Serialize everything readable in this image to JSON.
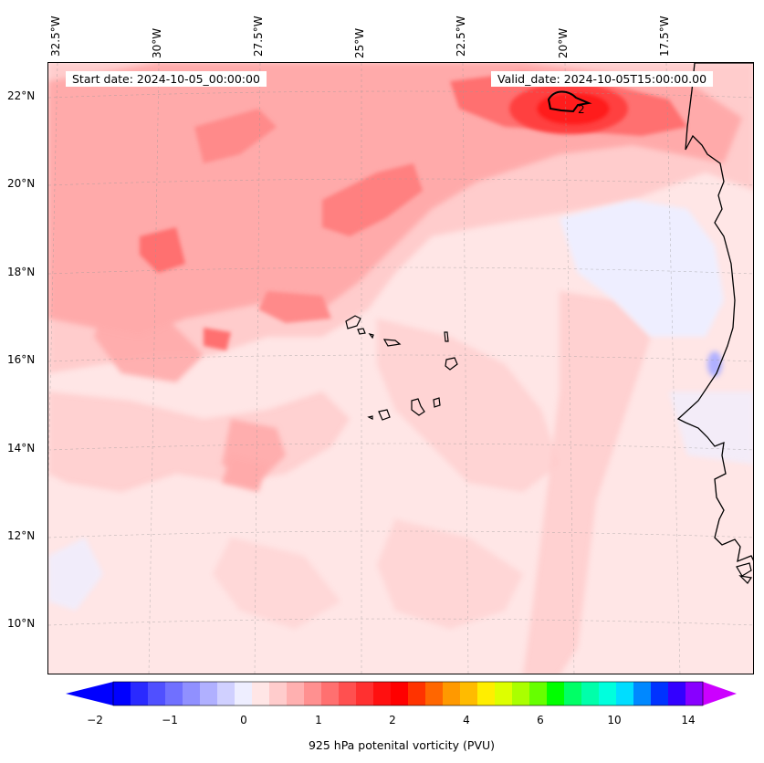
{
  "title": {
    "start_date": "Start date: 2024-10-05_00:00:00",
    "valid_date": "Valid_date: 2024-10-05T15:00:00.00"
  },
  "axes": {
    "longitude_labels": [
      "32.5°W",
      "30°W",
      "27.5°W",
      "25°W",
      "22.5°W",
      "20°W",
      "17.5°W"
    ],
    "latitude_labels": [
      "22°N",
      "20°N",
      "18°N",
      "16°N",
      "14°N",
      "12°N",
      "10°N"
    ]
  },
  "contour_label": "2",
  "colorbar": {
    "label": "925 hPa potenital vorticity (PVU)",
    "tick_labels": [
      "−2",
      "−1",
      "0",
      "1",
      "2",
      "4",
      "6",
      "10",
      "14"
    ],
    "colors": [
      "#0000ff",
      "#2a2aff",
      "#5050ff",
      "#7070ff",
      "#9090ff",
      "#b0b0ff",
      "#d0d0ff",
      "#eeeeff",
      "#ffe6e6",
      "#ffcccc",
      "#ffb0b0",
      "#ff9090",
      "#ff7070",
      "#ff5050",
      "#ff3030",
      "#ff1010",
      "#ff0000",
      "#ff3300",
      "#ff6600",
      "#ff9900",
      "#ffbb00",
      "#ffee00",
      "#ddff00",
      "#aaff00",
      "#66ff00",
      "#00ff00",
      "#00ff66",
      "#00ffaa",
      "#00ffdd",
      "#00ddff",
      "#0088ff",
      "#0033ff",
      "#3300ff",
      "#8800ff"
    ],
    "extend_low_color": "#0000ff",
    "extend_high_color": "#cc00ff"
  },
  "colors": {
    "background_pv": "#ffe6e6",
    "light_pink": "#ffcccc",
    "mid_pink": "#ffaaaa",
    "strong_red": "#ff6666",
    "peak_red": "#ff2a2a",
    "negative_blue": "#eeeeff",
    "coast": "#000000"
  }
}
